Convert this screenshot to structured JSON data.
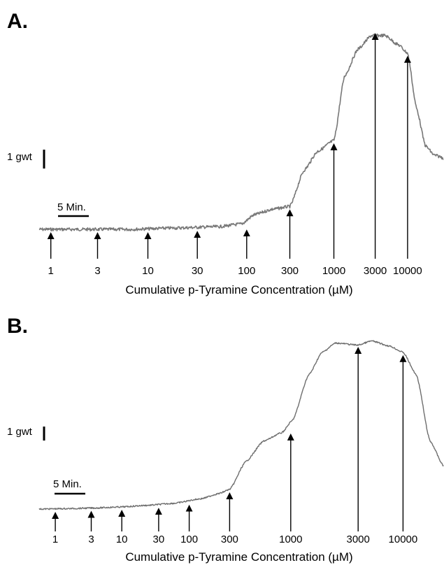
{
  "chart_data": [
    {
      "type": "line",
      "panel_label": "A.",
      "xlabel": "Cumulative p-Tyramine Concentration (µM)",
      "scale_bar_force": "1 gwt",
      "scale_bar_time": "5 Min.",
      "additions": [
        {
          "label": "1",
          "t": 1.3,
          "y": 0.0
        },
        {
          "label": "3",
          "t": 6.5,
          "y": 0.0
        },
        {
          "label": "10",
          "t": 12.1,
          "y": 0.0
        },
        {
          "label": "30",
          "t": 17.6,
          "y": 0.05
        },
        {
          "label": "100",
          "t": 23.1,
          "y": 0.1
        },
        {
          "label": "300",
          "t": 27.9,
          "y": 0.85
        },
        {
          "label": "1000",
          "t": 32.8,
          "y": 3.3
        },
        {
          "label": "3000",
          "t": 37.4,
          "y": 7.4
        },
        {
          "label": "10000",
          "t": 41.0,
          "y": 6.55
        }
      ],
      "trace": {
        "t": [
          0,
          5,
          10,
          15,
          20,
          22.5,
          24,
          26,
          27.9,
          29.5,
          31,
          32.8,
          34,
          35.5,
          37,
          38.5,
          40,
          41,
          42,
          43,
          44,
          46,
          47
        ],
        "y": [
          0,
          0,
          0,
          0.05,
          0.1,
          0.2,
          0.55,
          0.75,
          0.85,
          2.2,
          2.9,
          3.3,
          5.7,
          6.7,
          7.2,
          7.2,
          6.85,
          6.55,
          4.5,
          3.1,
          2.75,
          2.55,
          2.5
        ]
      }
    },
    {
      "type": "line",
      "panel_label": "B.",
      "xlabel": "Cumulative p-Tyramine Concentration (µM)",
      "scale_bar_force": "1 gwt",
      "scale_bar_time": "5 Min.",
      "additions": [
        {
          "label": "1",
          "t": 1.8,
          "y": 0.0
        },
        {
          "label": "3",
          "t": 5.8,
          "y": 0.05
        },
        {
          "label": "10",
          "t": 9.2,
          "y": 0.1
        },
        {
          "label": "30",
          "t": 13.3,
          "y": 0.2
        },
        {
          "label": "100",
          "t": 16.7,
          "y": 0.35
        },
        {
          "label": "300",
          "t": 21.2,
          "y": 0.95
        },
        {
          "label": "1000",
          "t": 28.0,
          "y": 3.8
        },
        {
          "label": "3000",
          "t": 35.5,
          "y": 8.0
        },
        {
          "label": "10000",
          "t": 40.5,
          "y": 7.6
        }
      ],
      "trace": {
        "t": [
          0,
          3,
          6,
          9,
          12,
          15,
          18,
          20,
          21.2,
          23,
          25,
          27,
          28.2,
          30,
          31.5,
          33,
          35.5,
          37,
          39,
          40.5,
          42,
          43.5,
          45,
          47
        ],
        "y": [
          0,
          0.02,
          0.05,
          0.1,
          0.18,
          0.28,
          0.5,
          0.75,
          0.95,
          2.3,
          3.3,
          3.7,
          4.3,
          6.5,
          7.6,
          8.05,
          7.95,
          8.15,
          7.9,
          7.6,
          6.5,
          3.3,
          2.1,
          1.8
        ]
      }
    }
  ]
}
